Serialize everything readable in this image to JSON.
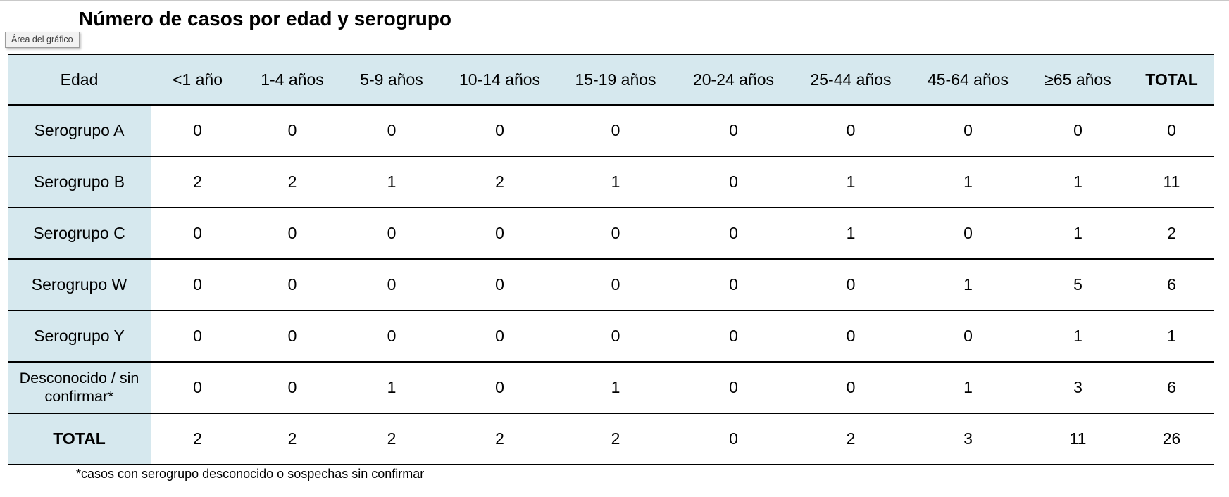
{
  "tooltip": {
    "label": "Área del gráfico"
  },
  "colors": {
    "header_bg": "#d6e8ee",
    "grid_line": "#000000"
  },
  "chart_data": {
    "type": "table",
    "title": "Número de casos por edad y serogrupo",
    "columns": [
      "Edad",
      "<1 año",
      "1-4 años",
      "5-9 años",
      "10-14 años",
      "15-19 años",
      "20-24 años",
      "25-44 años",
      "45-64 años",
      "≥65 años",
      "TOTAL"
    ],
    "rows": [
      {
        "label": "Serogrupo A",
        "values": [
          0,
          0,
          0,
          0,
          0,
          0,
          0,
          0,
          0,
          0
        ]
      },
      {
        "label": "Serogrupo B",
        "values": [
          2,
          2,
          1,
          2,
          1,
          0,
          1,
          1,
          1,
          11
        ]
      },
      {
        "label": "Serogrupo C",
        "values": [
          0,
          0,
          0,
          0,
          0,
          0,
          1,
          0,
          1,
          2
        ]
      },
      {
        "label": "Serogrupo W",
        "values": [
          0,
          0,
          0,
          0,
          0,
          0,
          0,
          1,
          5,
          6
        ]
      },
      {
        "label": "Serogrupo Y",
        "values": [
          0,
          0,
          0,
          0,
          0,
          0,
          0,
          0,
          1,
          1
        ]
      },
      {
        "label": "Desconocido / sin confirmar*",
        "values": [
          0,
          0,
          1,
          0,
          1,
          0,
          0,
          1,
          3,
          6
        ],
        "two_line": true
      },
      {
        "label": "TOTAL",
        "values": [
          2,
          2,
          2,
          2,
          2,
          0,
          2,
          3,
          11,
          26
        ],
        "is_total": true
      }
    ],
    "footnote": "*casos con serogrupo desconocido o sospechas sin confirmar",
    "layout": {
      "grid": "horizontal-rules-only",
      "header_fill": "#d6e8ee",
      "label_column_fill": "#d6e8ee"
    }
  }
}
